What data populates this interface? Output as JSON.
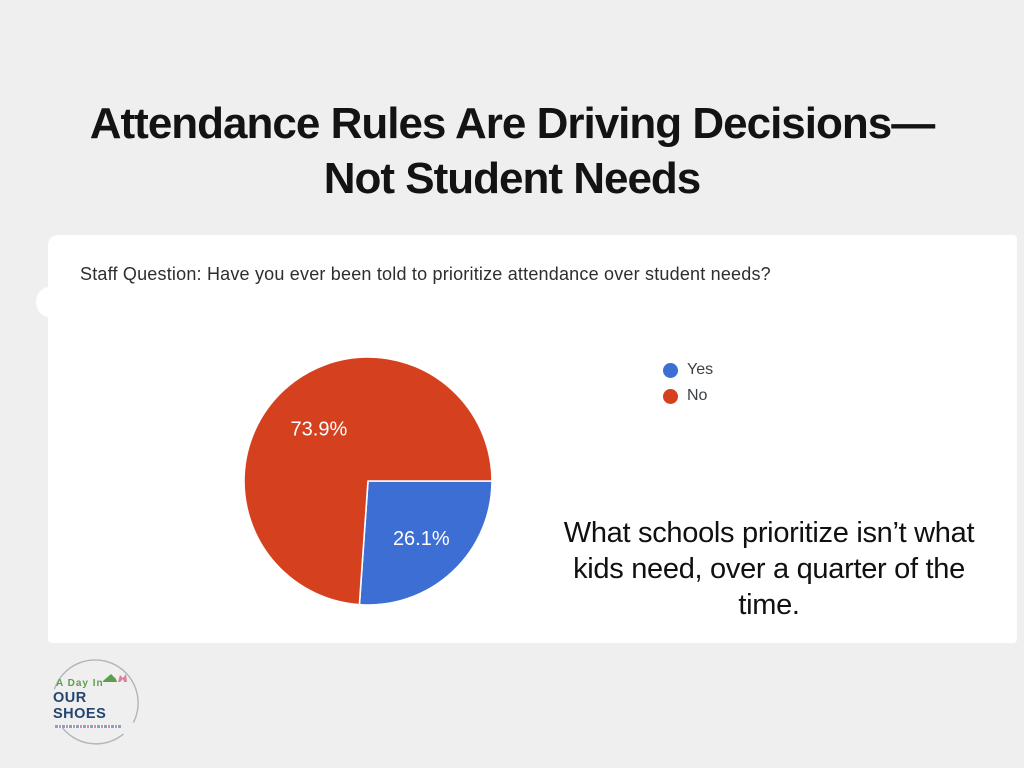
{
  "page": {
    "background_color": "#efefef",
    "card_color": "#ffffff"
  },
  "title": {
    "lines": [
      "Attendance Rules Are Driving Decisions—",
      "Not Student Needs"
    ]
  },
  "card": {
    "question": "Staff Question: Have you ever been told to prioritize attendance over student needs?",
    "statement_lines": [
      "What schools prioritize isn’t what",
      "kids need, over a quarter of the",
      "time."
    ]
  },
  "chart_data": {
    "type": "pie",
    "title": "Staff Question: Have you ever been told to prioritize attendance over student needs?",
    "labels": [
      "Yes",
      "No"
    ],
    "values": [
      26.1,
      73.9
    ],
    "value_labels": [
      "26.1%",
      "73.9%"
    ],
    "colors": [
      "#3c6ed4",
      "#d5411e"
    ],
    "slice_label_color": "#ffffff",
    "start_angle_deg": 0,
    "direction": "clockwise",
    "legend_position": "right",
    "legend_text_color": "#3c4043"
  },
  "logo": {
    "line1": "A Day In",
    "line2": "OUR SHOES",
    "green": "#5e9c4e",
    "navy": "#23456e",
    "heel_pink": "#d9829e",
    "arc_gray": "#9aa3a9"
  }
}
